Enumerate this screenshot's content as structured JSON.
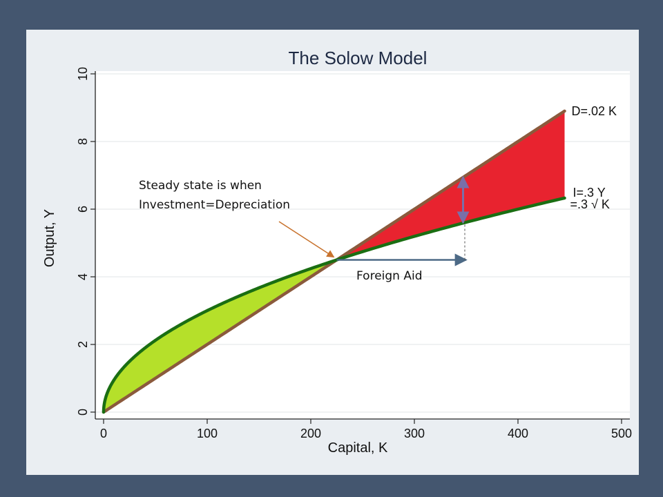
{
  "chart_data": {
    "type": "line",
    "title": "The Solow Model",
    "xlabel": "Capital, K",
    "ylabel": "Output, Y",
    "xlim": [
      0,
      500
    ],
    "ylim": [
      0,
      10
    ],
    "xticks": [
      0,
      100,
      200,
      300,
      400,
      500
    ],
    "yticks": [
      0,
      2,
      4,
      6,
      8,
      10
    ],
    "grid": true,
    "series": [
      {
        "label_lines": [
          "D=.02 K"
        ],
        "color": "#8b5a3c",
        "x": [
          0,
          50,
          100,
          150,
          200,
          225,
          250,
          300,
          350,
          400,
          445
        ],
        "y": [
          0,
          1.0,
          2.0,
          3.0,
          4.0,
          4.5,
          5.0,
          6.0,
          7.0,
          8.0,
          8.9
        ]
      },
      {
        "label_lines": [
          "I=.3 Y",
          "=.3 √ K"
        ],
        "color": "#1a6e12",
        "x": [
          0,
          1,
          5,
          10,
          25,
          50,
          100,
          150,
          200,
          225,
          250,
          300,
          350,
          400,
          445
        ],
        "y": [
          0,
          0.3,
          0.67,
          0.95,
          1.5,
          2.12,
          3.0,
          3.67,
          4.24,
          4.5,
          4.74,
          5.2,
          5.61,
          6.0,
          6.33
        ]
      }
    ],
    "fills": [
      {
        "between": "investment-above-depreciation",
        "x_range": [
          0,
          225
        ],
        "color": "#b5e02a"
      },
      {
        "between": "depreciation-above-investment",
        "x_range": [
          225,
          445
        ],
        "color": "#e8232f"
      }
    ],
    "annotations": {
      "steady_state_lines": [
        "Steady state is when",
        "Investment=Depreciation"
      ],
      "foreign_aid": "Foreign Aid",
      "steady_state_point": {
        "x": 225,
        "y": 4.5
      },
      "foreign_aid_arrow": {
        "x_from": 225,
        "x_to": 350,
        "y": 4.5
      },
      "gap_arrow": {
        "x": 347,
        "y_from": 5.6,
        "y_to": 6.95
      },
      "colors": {
        "pointer": "#c8732e",
        "aid_arrow": "#4d6a86",
        "gap_arrow": "#7a6fa8"
      }
    }
  }
}
